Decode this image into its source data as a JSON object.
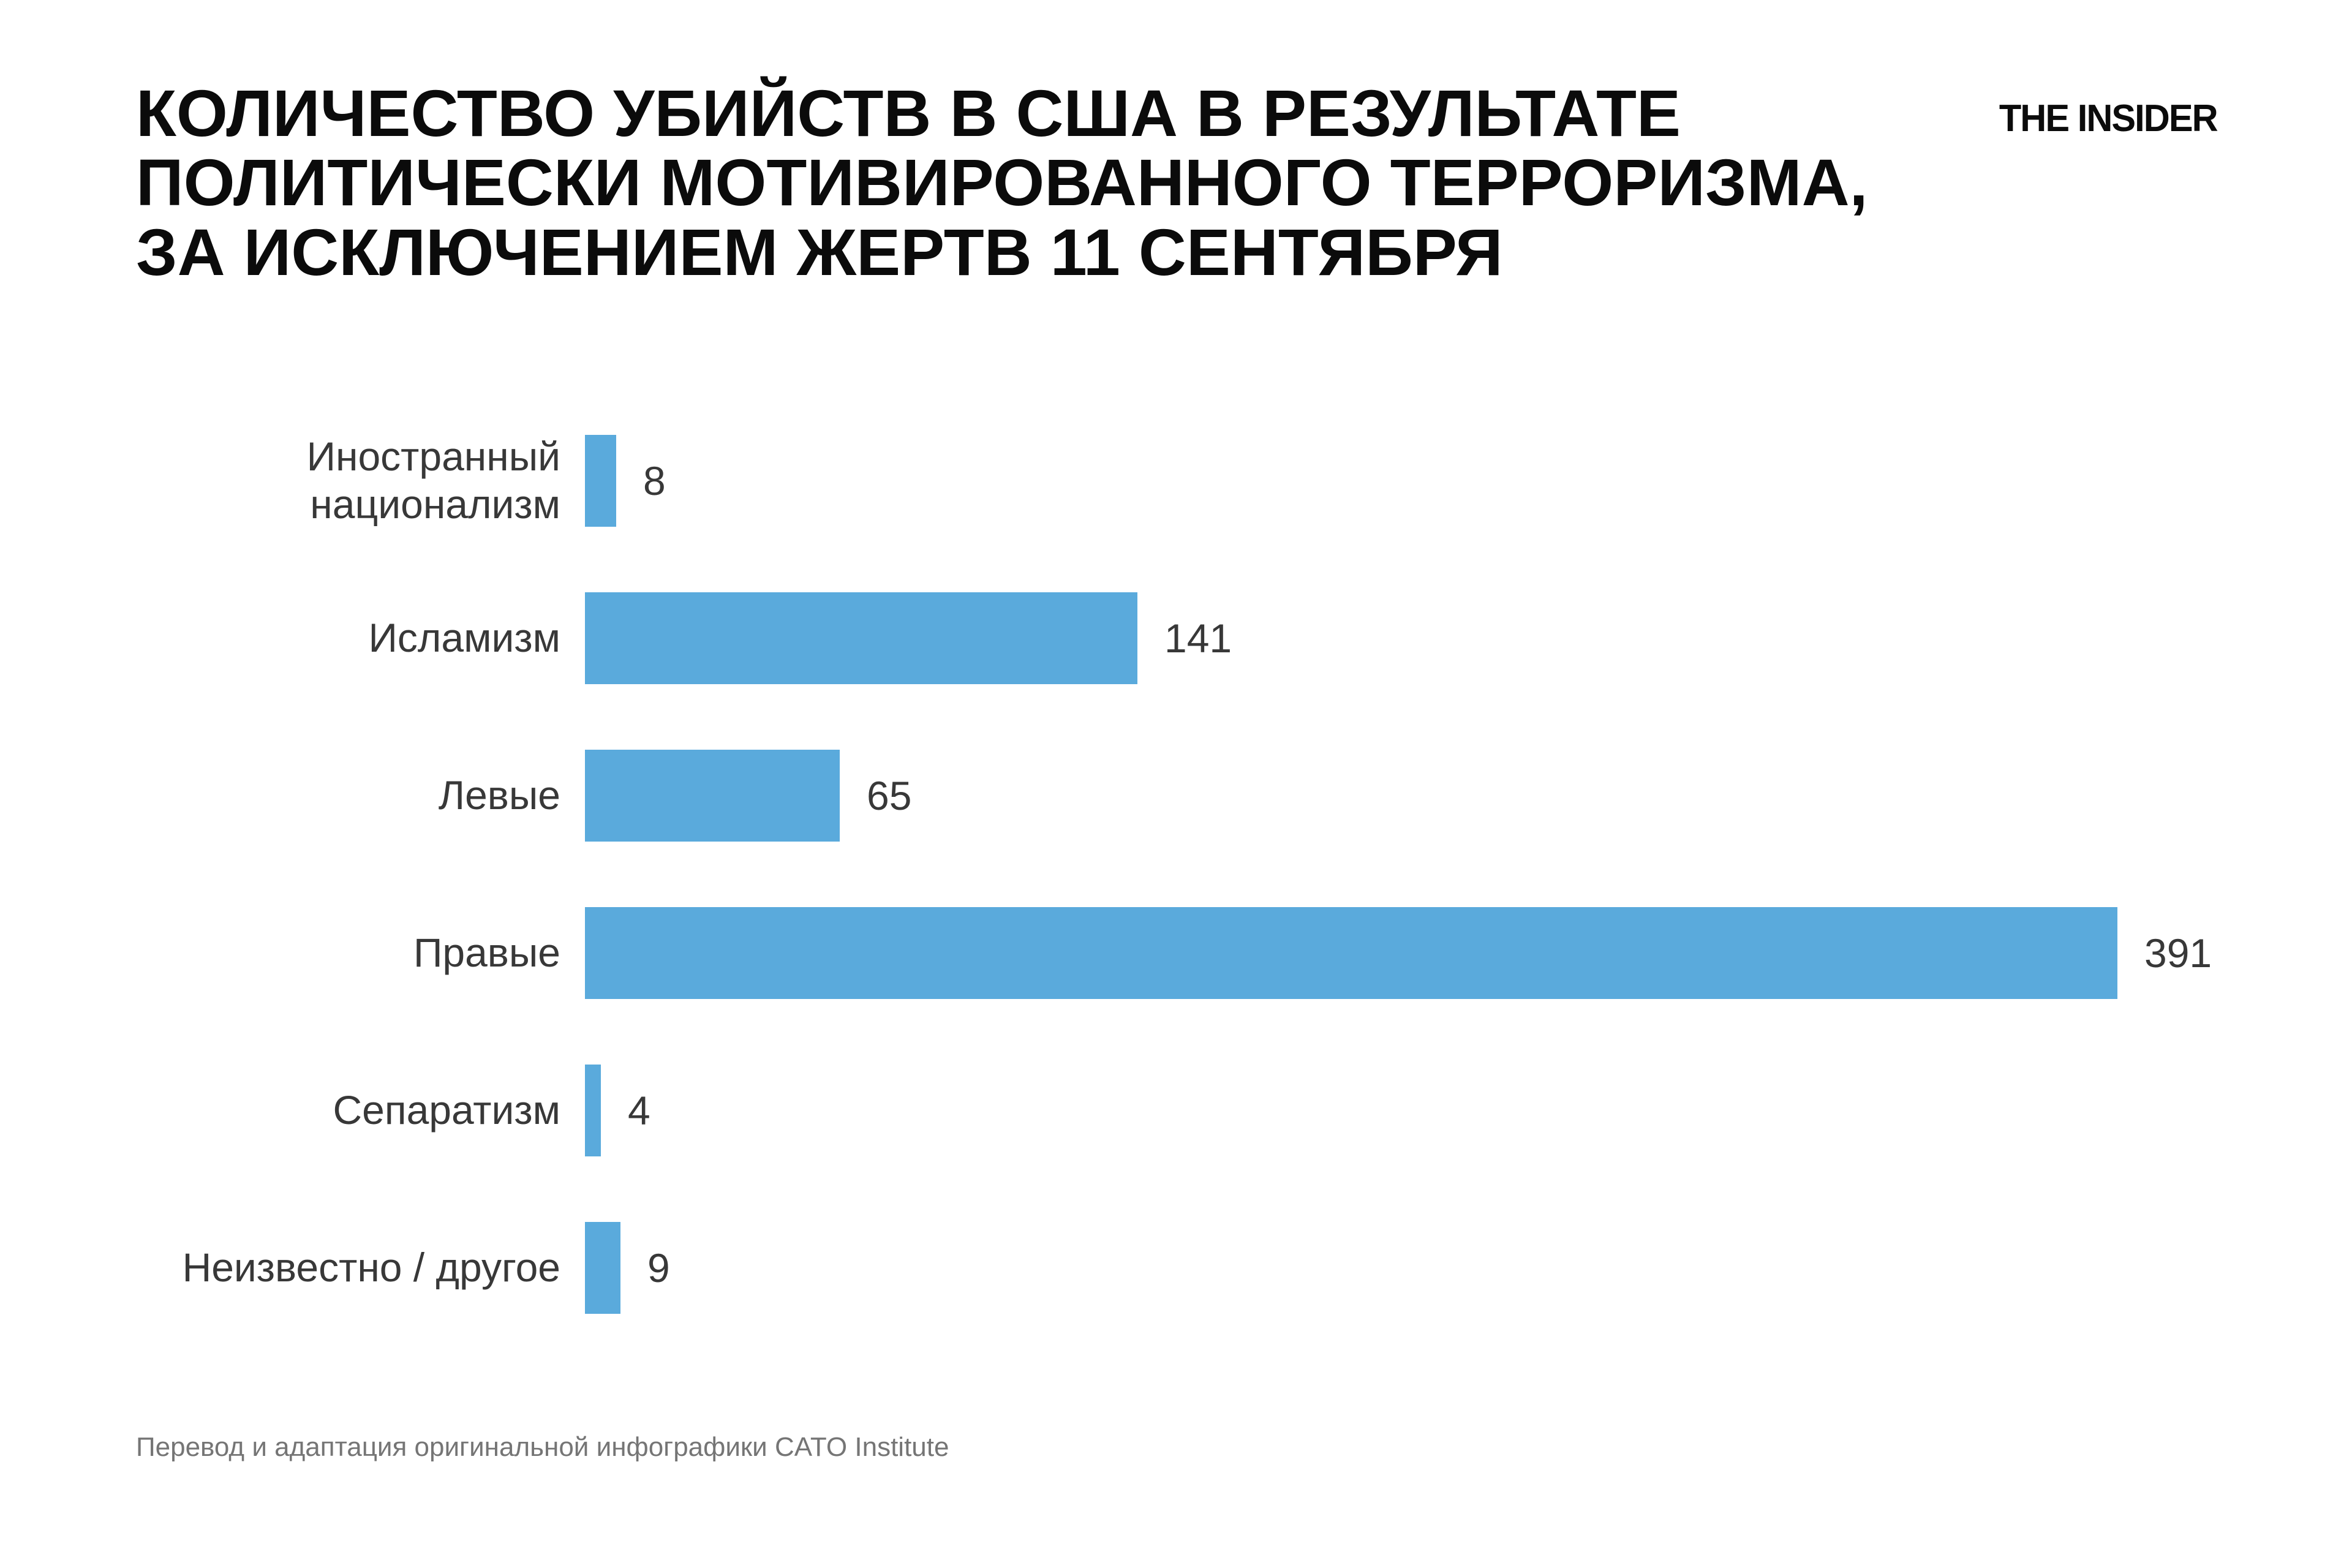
{
  "header": {
    "title": "КОЛИЧЕСТВО УБИЙСТВ В США В РЕЗУЛЬТАТЕ\nПОЛИТИЧЕСКИ МОТИВИРОВАННОГО ТЕРРОРИЗМА,\nЗА ИСКЛЮЧЕНИЕМ ЖЕРТВ 11 СЕНТЯБРЯ",
    "brand": "THE INSIDER"
  },
  "chart_data": {
    "type": "bar",
    "orientation": "horizontal",
    "title": "Количество убийств в США в результате политически мотивированного терроризма, за исключением жертв 11 сентября",
    "categories": [
      "Иностранный национализм",
      "Исламизм",
      "Левые",
      "Правые",
      "Сепаратизм",
      "Неизвестно / другое"
    ],
    "display_labels": [
      "Иностранный\nнационализм",
      "Исламизм",
      "Левые",
      "Правые",
      "Сепаратизм",
      "Неизвестно / другое"
    ],
    "values": [
      8,
      141,
      65,
      391,
      4,
      9
    ],
    "xlim": [
      0,
      391
    ],
    "grid": false,
    "legend": false,
    "bar_color": "#5AAADC",
    "label_color": "#383838",
    "value_label_color": "#383838"
  },
  "footer": {
    "source": "Перевод и адаптация оригинальной инфографики CATO Institute"
  }
}
